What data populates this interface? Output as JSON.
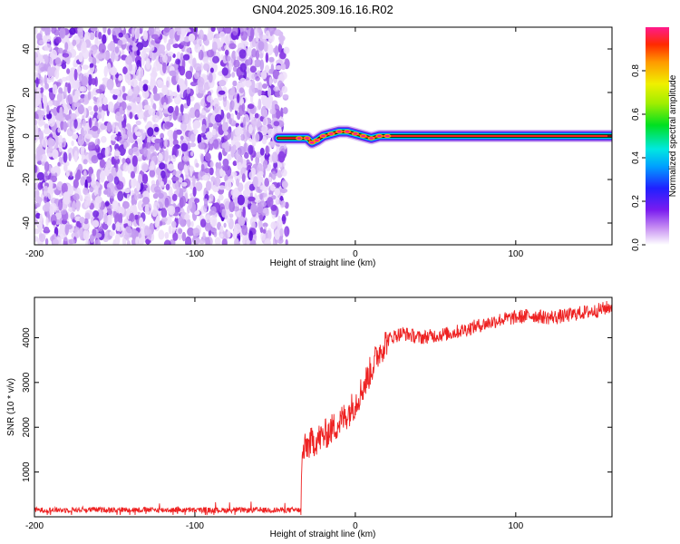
{
  "title": "GN04.2025.309.16.16.R02",
  "colors": {
    "noise": "#7a2ee6",
    "noise_light": "#c9a6f2",
    "snr_line": "#ee2222"
  },
  "chart_data": [
    {
      "type": "heatmap",
      "title": "GN04.2025.309.16.16.R02",
      "xlabel": "Height of straight line (km)",
      "ylabel": "Frequency (Hz)",
      "xlim": [
        -200,
        160
      ],
      "ylim": [
        -50,
        50
      ],
      "x_ticks": [
        -200,
        -100,
        0,
        100
      ],
      "y_ticks": [
        -40,
        -20,
        0,
        20,
        40
      ],
      "noise_region_x": [
        -200,
        -46
      ],
      "signal_track": {
        "x": [
          -48,
          -40,
          -35,
          -30,
          -27,
          -24,
          -20,
          -15,
          -10,
          -5,
          0,
          5,
          10,
          15,
          20,
          30,
          60,
          100,
          160
        ],
        "freq": [
          -1,
          -1,
          -1,
          -1,
          -3,
          -2,
          0,
          1,
          2,
          2,
          1,
          0,
          -1,
          0,
          0,
          0,
          0,
          0,
          0
        ]
      },
      "colorbar": {
        "label": "Normalized spectral amplitude",
        "range": [
          0.0,
          1.0
        ],
        "ticks": [
          0.0,
          0.2,
          0.4,
          0.6,
          0.8
        ],
        "tick_labels": [
          "0.0",
          "0.2",
          "0.4",
          "0.6",
          "0.8"
        ]
      }
    },
    {
      "type": "line",
      "xlabel": "Height of straight line (km)",
      "ylabel": "SNR (10 * v/v)",
      "xlim": [
        -200,
        160
      ],
      "ylim": [
        0,
        4900
      ],
      "x_ticks": [
        -200,
        -100,
        0,
        100
      ],
      "y_ticks": [
        1000,
        2000,
        3000,
        4000
      ],
      "series": [
        {
          "x": [
            -200,
            -150,
            -100,
            -50,
            -34,
            -33,
            -30,
            -25,
            -20,
            -15,
            -10,
            -5,
            0,
            5,
            10,
            15,
            20,
            25,
            30,
            40,
            50,
            60,
            70,
            80,
            90,
            100,
            110,
            120,
            130,
            140,
            150,
            160
          ],
          "values": [
            150,
            160,
            150,
            150,
            150,
            1400,
            1600,
            1700,
            1800,
            1950,
            2100,
            2300,
            2550,
            2900,
            3300,
            3700,
            3950,
            4050,
            4100,
            4000,
            4050,
            4100,
            4200,
            4300,
            4400,
            4450,
            4500,
            4450,
            4480,
            4550,
            4600,
            4700
          ]
        }
      ]
    }
  ]
}
